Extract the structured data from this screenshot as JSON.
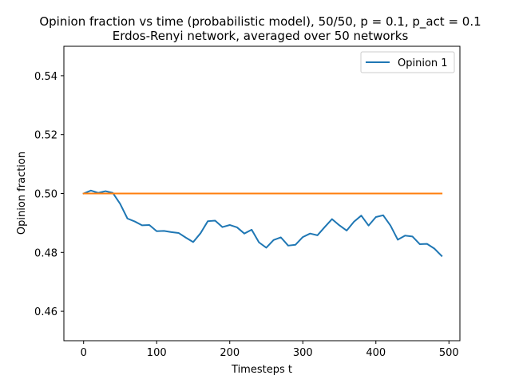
{
  "chart_data": {
    "type": "line",
    "title_line1": "Opinion fraction vs time (probabilistic model), 50/50, p = 0.1, p_act = 0.1",
    "title_line2": "Erdos-Renyi network, averaged over 50 networks",
    "xlabel": "Timesteps t",
    "ylabel": "Opinion fraction",
    "xlim": [
      -27,
      515
    ],
    "ylim": [
      0.45,
      0.55
    ],
    "xticks": [
      0,
      100,
      200,
      300,
      400,
      500
    ],
    "yticks": [
      0.46,
      0.48,
      0.5,
      0.52,
      0.54
    ],
    "ytick_labels": [
      "0.46",
      "0.48",
      "0.50",
      "0.52",
      "0.54"
    ],
    "legend_position": "top-right",
    "series": [
      {
        "name": "Opinion 1",
        "color": "#1f77b4",
        "x": [
          0,
          10,
          20,
          30,
          40,
          50,
          60,
          70,
          80,
          90,
          100,
          110,
          120,
          130,
          140,
          150,
          160,
          170,
          180,
          190,
          200,
          210,
          220,
          230,
          240,
          250,
          260,
          270,
          280,
          290,
          300,
          310,
          320,
          330,
          340,
          350,
          360,
          370,
          380,
          390,
          400,
          410,
          420,
          430,
          440,
          450,
          460,
          470,
          480,
          490
        ],
        "y": [
          0.5,
          0.501,
          0.5002,
          0.5008,
          0.5002,
          0.4965,
          0.4915,
          0.4905,
          0.4892,
          0.4893,
          0.4872,
          0.4873,
          0.4869,
          0.4866,
          0.485,
          0.4835,
          0.4865,
          0.4906,
          0.4908,
          0.4886,
          0.4893,
          0.4885,
          0.4864,
          0.4877,
          0.4834,
          0.4816,
          0.4842,
          0.4851,
          0.4823,
          0.4826,
          0.4852,
          0.4864,
          0.4858,
          0.4886,
          0.4913,
          0.4892,
          0.4874,
          0.4904,
          0.4925,
          0.4891,
          0.492,
          0.4926,
          0.4891,
          0.4843,
          0.4857,
          0.4854,
          0.4828,
          0.4829,
          0.4813,
          0.4788
        ]
      },
      {
        "color": "#ff7f0e",
        "x": [
          0,
          10,
          20,
          30,
          40,
          50,
          60,
          70,
          80,
          90,
          100,
          110,
          120,
          130,
          140,
          150,
          160,
          170,
          180,
          190,
          200,
          210,
          220,
          230,
          240,
          250,
          260,
          270,
          280,
          290,
          300,
          310,
          320,
          330,
          340,
          350,
          360,
          370,
          380,
          390,
          400,
          410,
          420,
          430,
          440,
          450,
          460,
          470,
          480,
          490
        ],
        "y": [
          0.5,
          0.5,
          0.5,
          0.5,
          0.5,
          0.5,
          0.5,
          0.5,
          0.5,
          0.5,
          0.5,
          0.5,
          0.5,
          0.5,
          0.5,
          0.5,
          0.5,
          0.5,
          0.5,
          0.5,
          0.5,
          0.5,
          0.5,
          0.5,
          0.5,
          0.5,
          0.5,
          0.5,
          0.5,
          0.5,
          0.5,
          0.5,
          0.5,
          0.5,
          0.5,
          0.5,
          0.5,
          0.5,
          0.5,
          0.5,
          0.5,
          0.5,
          0.5,
          0.5,
          0.5,
          0.5,
          0.5,
          0.5,
          0.5,
          0.5
        ]
      }
    ]
  }
}
